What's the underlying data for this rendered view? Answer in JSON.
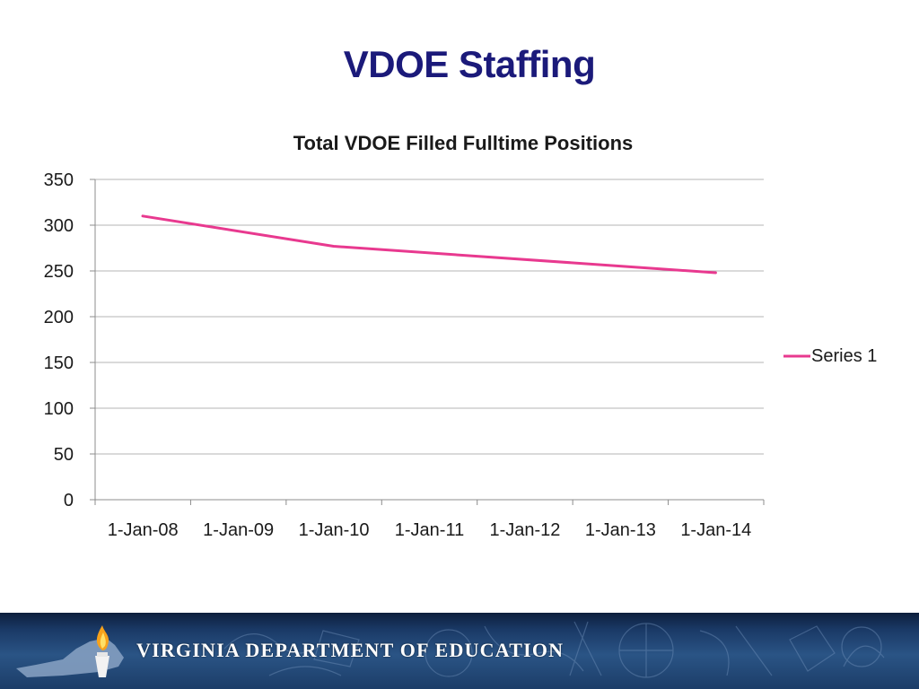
{
  "slide": {
    "title": "VDOE Staffing"
  },
  "footer": {
    "organization": "VIRGINIA DEPARTMENT OF EDUCATION"
  },
  "colors": {
    "title": "#1b1a7a",
    "series_line": "#e8398f",
    "gridline": "#b4b4b4",
    "axis": "#8c8c8c"
  },
  "chart_data": {
    "type": "line",
    "title": "Total VDOE Filled Fulltime Positions",
    "xlabel": "",
    "ylabel": "",
    "x_ticks": [
      "1-Jan-08",
      "1-Jan-09",
      "1-Jan-10",
      "1-Jan-11",
      "1-Jan-12",
      "1-Jan-13",
      "1-Jan-14"
    ],
    "y_ticks": [
      "0",
      "50",
      "100",
      "150",
      "200",
      "250",
      "300",
      "350"
    ],
    "ylim": [
      0,
      350
    ],
    "xlim": [
      "1-Jan-08",
      "1-Jan-15"
    ],
    "grid": true,
    "legend_position": "right",
    "series": [
      {
        "name": "Series 1",
        "color": "#e8398f",
        "points": [
          {
            "x": "1-Jul-08",
            "y": 310
          },
          {
            "x": "1-Jul-10",
            "y": 277
          },
          {
            "x": "1-Jul-14",
            "y": 248
          }
        ]
      }
    ]
  }
}
